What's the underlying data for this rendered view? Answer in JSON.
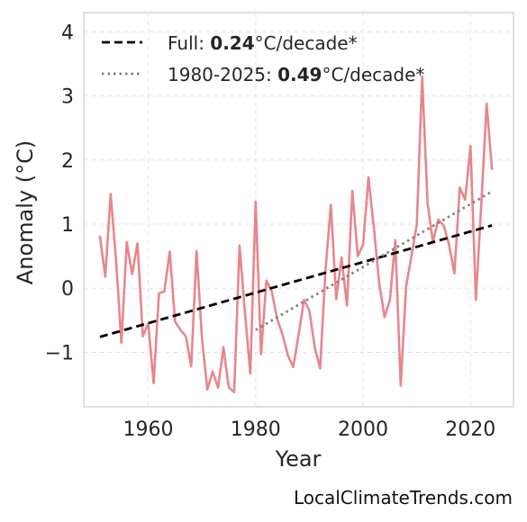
{
  "chart_data": {
    "type": "line",
    "title": "",
    "xlabel": "Year",
    "ylabel": "Anomaly (°C)",
    "xlim": [
      1948,
      2028
    ],
    "ylim": [
      -1.85,
      4.3
    ],
    "xticks": [
      1960,
      1980,
      2000,
      2020
    ],
    "yticks": [
      -1,
      0,
      1,
      2,
      3,
      4
    ],
    "ytick_labels": [
      "−1",
      "0",
      "1",
      "2",
      "3",
      "4"
    ],
    "grid": true,
    "legend_position": "top-left",
    "series": [
      {
        "name": "",
        "color": "#e8868a",
        "style": "solid",
        "x": [
          1951,
          1952,
          1953,
          1954,
          1955,
          1956,
          1957,
          1958,
          1959,
          1960,
          1961,
          1962,
          1963,
          1964,
          1965,
          1966,
          1967,
          1968,
          1969,
          1970,
          1971,
          1972,
          1973,
          1974,
          1975,
          1976,
          1977,
          1978,
          1979,
          1980,
          1981,
          1982,
          1983,
          1984,
          1985,
          1986,
          1987,
          1988,
          1989,
          1990,
          1991,
          1992,
          1993,
          1994,
          1995,
          1996,
          1997,
          1998,
          1999,
          2000,
          2001,
          2002,
          2003,
          2004,
          2005,
          2006,
          2007,
          2008,
          2009,
          2010,
          2011,
          2012,
          2013,
          2014,
          2015,
          2016,
          2017,
          2018,
          2019,
          2020,
          2021,
          2022,
          2023,
          2024
        ],
        "y": [
          0.82,
          0.18,
          1.47,
          0.45,
          -0.85,
          0.72,
          0.22,
          0.7,
          -0.75,
          -0.55,
          -1.48,
          -0.08,
          -0.05,
          0.57,
          -0.52,
          -0.65,
          -0.75,
          -1.22,
          0.58,
          -0.78,
          -1.58,
          -1.3,
          -1.55,
          -0.92,
          -1.55,
          -1.62,
          0.67,
          -0.38,
          -1.33,
          1.35,
          -1.03,
          0.12,
          -0.05,
          -0.48,
          -0.72,
          -1.05,
          -1.23,
          -0.72,
          -0.18,
          -0.35,
          -0.92,
          -1.25,
          0.28,
          1.3,
          -0.17,
          0.48,
          -0.27,
          1.52,
          0.5,
          0.68,
          1.73,
          0.95,
          0.08,
          -0.45,
          -0.18,
          0.75,
          -1.52,
          0.02,
          0.5,
          1.0,
          3.3,
          1.33,
          0.72,
          1.07,
          0.98,
          0.68,
          0.23,
          1.57,
          1.38,
          2.22,
          -0.18,
          1.3,
          2.88,
          1.85
        ]
      },
      {
        "name": "Full",
        "trend_label_prefix": "Full: ",
        "trend_value": "0.24",
        "trend_unit": "°C/decade*",
        "color": "#000000",
        "style": "dashed",
        "x": [
          1951,
          2024
        ],
        "y": [
          -0.76,
          0.98
        ]
      },
      {
        "name": "1980-2025",
        "trend_label_prefix": "1980-2025: ",
        "trend_value": "0.49",
        "trend_unit": "°C/decade*",
        "color": "#808080",
        "style": "dotted",
        "x": [
          1980,
          2024
        ],
        "y": [
          -0.65,
          1.51
        ]
      }
    ]
  },
  "credit": "LocalClimateTrends.com"
}
